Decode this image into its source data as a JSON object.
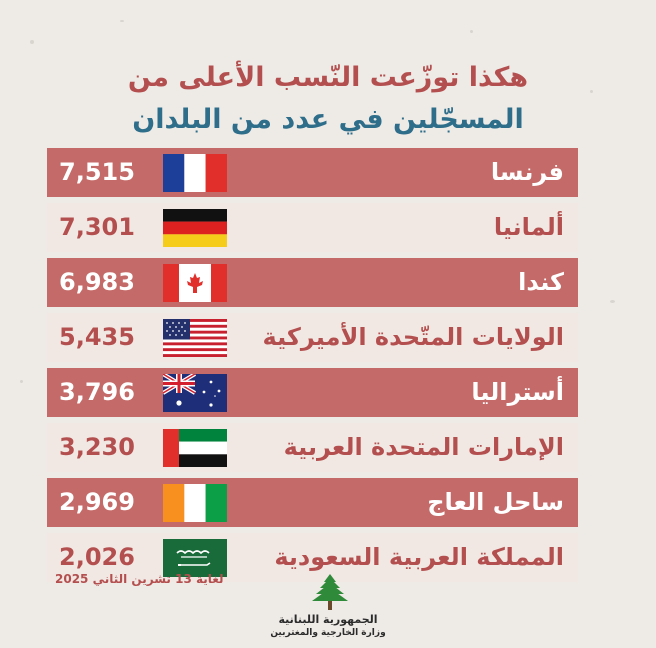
{
  "title": {
    "line1": "هكذا توزّعت النّسب الأعلى من",
    "line2": "المسجّلين في عدد من البلدان"
  },
  "rows": [
    {
      "country": "فرنسا",
      "value": "7,515",
      "flag": "france-flag-icon"
    },
    {
      "country": "ألمانيا",
      "value": "7,301",
      "flag": "germany-flag-icon"
    },
    {
      "country": "كندا",
      "value": "6,983",
      "flag": "canada-flag-icon"
    },
    {
      "country": "الولايات المتّحدة الأميركية",
      "value": "5,435",
      "flag": "usa-flag-icon"
    },
    {
      "country": "أستراليا",
      "value": "3,796",
      "flag": "australia-flag-icon"
    },
    {
      "country": "الإمارات المتحدة العربية",
      "value": "3,230",
      "flag": "uae-flag-icon"
    },
    {
      "country": "ساحل العاج",
      "value": "2,969",
      "flag": "ivory-coast-flag-icon"
    },
    {
      "country": "المملكة العربية السعودية",
      "value": "2,026",
      "flag": "saudi-arabia-flag-icon"
    }
  ],
  "footer": {
    "date": "لغاية 13 تشرين الثاني 2025",
    "ministry_line1": "الجمهورية اللبنانية",
    "ministry_line2": "وزارة الخارجية والمغتربين",
    "logo": "cedar-tree-icon"
  },
  "colors": {
    "dark_row": "#c46a68",
    "light_row": "#f1e8e3",
    "accent_red": "#b44f4f",
    "accent_blue": "#2e6e8a",
    "background": "#eeeae6"
  }
}
